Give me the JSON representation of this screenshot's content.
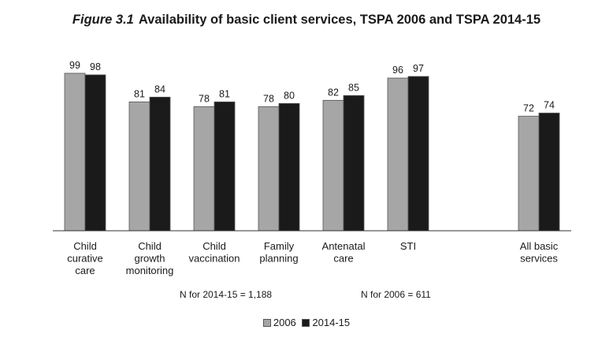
{
  "title": {
    "figure": "Figure 3.1",
    "text": "Availability of basic client services, TSPA 2006 and TSPA 2014-15"
  },
  "notes": {
    "n_2014": "N for 2014-15 = 1,188",
    "n_2006": "N for 2006 = 611"
  },
  "colors": {
    "s2006": "#a6a6a6",
    "s2014": "#1a1a1a",
    "outline": "#555555",
    "axis": "#333333"
  },
  "chart_data": {
    "type": "bar",
    "title": "Figure 3.1 Availability of basic client services, TSPA 2006 and TSPA 2014-15",
    "xlabel": "",
    "ylabel": "",
    "ylim": [
      0,
      100
    ],
    "grid": false,
    "legend_position": "bottom",
    "categories": [
      [
        "Child",
        "curative",
        "care"
      ],
      [
        "Child",
        "growth",
        "monitoring"
      ],
      [
        "Child",
        "vaccination"
      ],
      [
        "Family",
        "planning"
      ],
      [
        "Antenatal",
        "care"
      ],
      [
        "STI"
      ],
      [
        "All basic",
        "services"
      ]
    ],
    "series": [
      {
        "name": "2006",
        "values": [
          99,
          81,
          78,
          78,
          82,
          96,
          72
        ]
      },
      {
        "name": "2014-15",
        "values": [
          98,
          84,
          81,
          80,
          85,
          97,
          74
        ]
      }
    ]
  }
}
